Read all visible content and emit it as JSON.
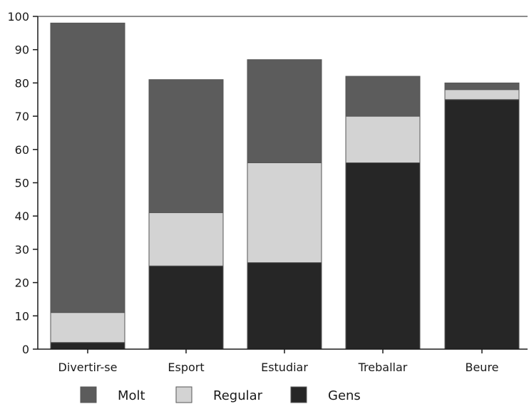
{
  "chart_data": {
    "type": "bar",
    "stacked": true,
    "categories": [
      "Divertir-se",
      "Esport",
      "Estudiar",
      "Treballar",
      "Beure"
    ],
    "series": [
      {
        "name": "Gens",
        "values": [
          2,
          25,
          26,
          56,
          75
        ],
        "color": "#262626"
      },
      {
        "name": "Regular",
        "values": [
          9,
          16,
          30,
          14,
          3
        ],
        "color": "#d3d3d3"
      },
      {
        "name": "Molt",
        "values": [
          87,
          40,
          31,
          12,
          2
        ],
        "color": "#5c5c5c"
      }
    ],
    "legend_order": [
      "Molt",
      "Regular",
      "Gens"
    ],
    "yticks": [
      0,
      10,
      20,
      30,
      40,
      50,
      60,
      70,
      80,
      90,
      100
    ],
    "ylim": [
      0,
      100
    ],
    "title": "",
    "xlabel": "",
    "ylabel": "",
    "legend_position": "bottom",
    "grid": false,
    "colors": {
      "axis": "#1a1a1a",
      "bar_outline": "#555555"
    }
  }
}
